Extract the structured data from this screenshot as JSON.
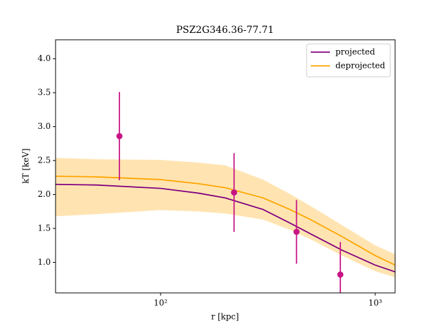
{
  "chart_data": {
    "type": "line",
    "title": "PSZ2G346.36-77.71",
    "xlabel": "r [kpc]",
    "ylabel": "kT [keV]",
    "xscale": "log",
    "xlim": [
      32.4,
      1238
    ],
    "ylim": [
      0.55,
      4.28
    ],
    "xticks": [
      {
        "value": 100,
        "label": "10²"
      },
      {
        "value": 1000,
        "label": "10³"
      }
    ],
    "yticks": [
      {
        "value": 1,
        "label": "1.0"
      },
      {
        "value": 1.5,
        "label": "1.5"
      },
      {
        "value": 2,
        "label": "2.0"
      },
      {
        "value": 2.5,
        "label": "2.5"
      },
      {
        "value": 3,
        "label": "3.0"
      },
      {
        "value": 3.5,
        "label": "3.5"
      },
      {
        "value": 4,
        "label": "4.0"
      }
    ],
    "legend": "upper right",
    "x": [
      32.4,
      50,
      100,
      150,
      200,
      300,
      400,
      500,
      700,
      1000,
      1238
    ],
    "series": [
      {
        "name": "projected",
        "color": "#800080",
        "values": [
          2.15,
          2.14,
          2.09,
          2.02,
          1.95,
          1.78,
          1.58,
          1.42,
          1.18,
          0.96,
          0.86
        ]
      },
      {
        "name": "deprojected",
        "color": "#ffa500",
        "values": [
          2.27,
          2.26,
          2.22,
          2.16,
          2.1,
          1.95,
          1.78,
          1.63,
          1.38,
          1.1,
          0.96
        ]
      }
    ],
    "band": {
      "color": "#ffa500",
      "lower": [
        1.68,
        1.71,
        1.77,
        1.75,
        1.72,
        1.63,
        1.48,
        1.34,
        1.1,
        0.87,
        0.78
      ],
      "upper": [
        2.54,
        2.52,
        2.51,
        2.47,
        2.43,
        2.22,
        2.01,
        1.83,
        1.55,
        1.25,
        1.12
      ]
    },
    "points": {
      "color": "#c71585",
      "x": [
        64.3,
        220,
        430,
        688
      ],
      "values": [
        2.86,
        2.03,
        1.45,
        0.82
      ],
      "errors": [
        0.65,
        0.58,
        0.47,
        0.48
      ]
    }
  }
}
